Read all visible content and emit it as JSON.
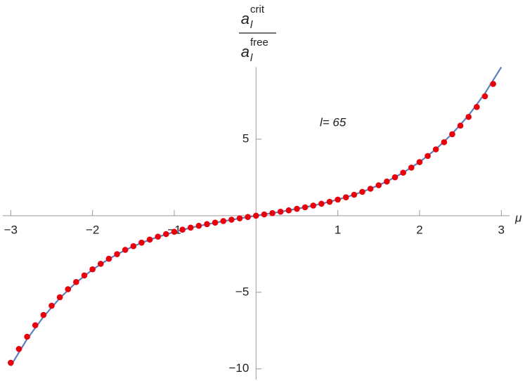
{
  "chart_data": {
    "type": "line",
    "y_label": {
      "numerator": {
        "base": "a",
        "sub": "l",
        "sup": "crit"
      },
      "denominator": {
        "base": "a",
        "sub": "l",
        "sup": "free"
      }
    },
    "x_label": "μ",
    "annotation": "l= 65",
    "xlim": [
      -3.1,
      3.1
    ],
    "ylim": [
      -10.7,
      9.7
    ],
    "xticks": [
      {
        "value": -3,
        "label": "−3"
      },
      {
        "value": -2,
        "label": "−2"
      },
      {
        "value": -1,
        "label": "−1"
      },
      1,
      2,
      3
    ],
    "yticks": [
      {
        "value": -10,
        "label": "−10"
      },
      {
        "value": -5,
        "label": "−5"
      },
      5
    ],
    "series": [
      {
        "kind": "line",
        "color": "#5b7fbf",
        "x": [
          -3,
          -2.8,
          -2.6,
          -2.4,
          -2.2,
          -2,
          -1.8,
          -1.6,
          -1.4,
          -1.2,
          -1,
          -0.8,
          -0.6,
          -0.4,
          -0.2,
          0,
          0.2,
          0.4,
          0.6,
          0.8,
          1,
          1.2,
          1.4,
          1.6,
          1.8,
          2,
          2.2,
          2.4,
          2.6,
          2.8,
          3
        ],
        "values": [
          -9.8,
          -8.05,
          -6.6,
          -5.38,
          -4.36,
          -3.52,
          -2.82,
          -2.24,
          -1.77,
          -1.38,
          -1.06,
          -0.79,
          -0.56,
          -0.36,
          -0.175,
          0,
          0.17,
          0.35,
          0.55,
          0.78,
          1.05,
          1.37,
          1.76,
          2.23,
          2.81,
          3.5,
          4.34,
          5.35,
          6.55,
          7.99,
          9.7
        ]
      },
      {
        "kind": "scatter",
        "color": "#e8000b",
        "x": [
          -3,
          -2.9,
          -2.8,
          -2.7,
          -2.6,
          -2.5,
          -2.4,
          -2.3,
          -2.2,
          -2.1,
          -2,
          -1.9,
          -1.8,
          -1.7,
          -1.6,
          -1.5,
          -1.4,
          -1.3,
          -1.2,
          -1.1,
          -1,
          -0.9,
          -0.8,
          -0.7,
          -0.6,
          -0.5,
          -0.4,
          -0.3,
          -0.2,
          -0.1,
          0,
          0.1,
          0.2,
          0.3,
          0.4,
          0.5,
          0.6,
          0.7,
          0.8,
          0.9,
          1,
          1.1,
          1.2,
          1.3,
          1.4,
          1.5,
          1.6,
          1.7,
          1.8,
          1.9,
          2,
          2.1,
          2.2,
          2.3,
          2.4,
          2.5,
          2.6,
          2.7,
          2.8,
          2.9
        ],
        "values": [
          -9.6,
          -8.7,
          -7.9,
          -7.15,
          -6.48,
          -5.88,
          -5.32,
          -4.8,
          -4.33,
          -3.9,
          -3.5,
          -3.14,
          -2.81,
          -2.51,
          -2.23,
          -1.99,
          -1.76,
          -1.56,
          -1.37,
          -1.2,
          -1.05,
          -0.91,
          -0.78,
          -0.66,
          -0.55,
          -0.45,
          -0.35,
          -0.26,
          -0.17,
          -0.085,
          0,
          0.085,
          0.17,
          0.26,
          0.35,
          0.45,
          0.55,
          0.66,
          0.78,
          0.91,
          1.05,
          1.2,
          1.37,
          1.56,
          1.76,
          1.99,
          2.23,
          2.51,
          2.81,
          3.14,
          3.5,
          3.9,
          4.33,
          4.8,
          5.32,
          5.88,
          6.45,
          7.1,
          7.8,
          8.6
        ]
      }
    ]
  }
}
